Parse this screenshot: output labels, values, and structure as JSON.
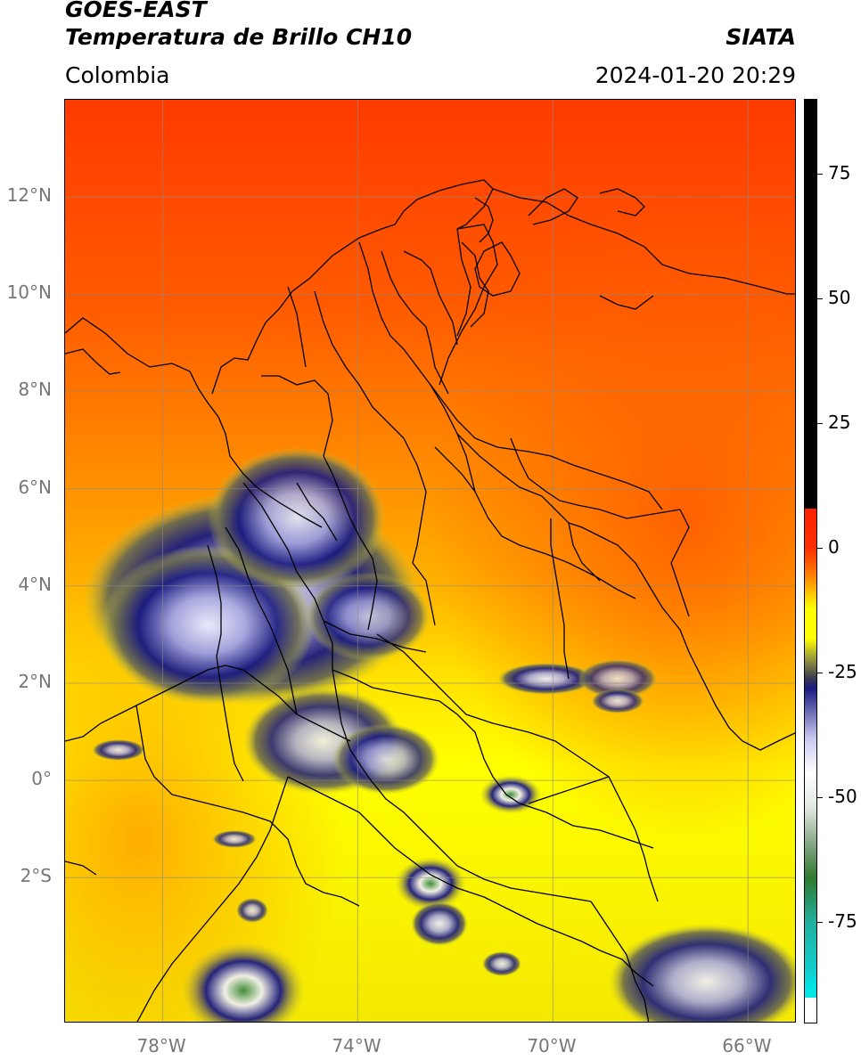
{
  "header": {
    "title": "GOES-EAST",
    "subtitle": "Temperatura de Brillo CH10",
    "region": "Colombia",
    "organization": "SIATA",
    "datetime": "2024-01-20 20:29"
  },
  "map": {
    "lon_range": [
      -80,
      -65
    ],
    "lat_range": [
      -5,
      14
    ],
    "lat_ticks": [
      {
        "value": 12,
        "label": "12°N"
      },
      {
        "value": 10,
        "label": "10°N"
      },
      {
        "value": 8,
        "label": "8°N"
      },
      {
        "value": 6,
        "label": "6°N"
      },
      {
        "value": 4,
        "label": "4°N"
      },
      {
        "value": 2,
        "label": "2°N"
      },
      {
        "value": 0,
        "label": "0°"
      },
      {
        "value": -2,
        "label": "2°S"
      }
    ],
    "lon_ticks": [
      {
        "value": -78,
        "label": "78°W"
      },
      {
        "value": -74,
        "label": "74°W"
      },
      {
        "value": -70,
        "label": "70°W"
      },
      {
        "value": -66,
        "label": "66°W"
      }
    ],
    "grid": true
  },
  "colorbar": {
    "range": [
      -95,
      90
    ],
    "ticks": [
      {
        "value": 75,
        "label": "75"
      },
      {
        "value": 50,
        "label": "50"
      },
      {
        "value": 25,
        "label": "25"
      },
      {
        "value": 0,
        "label": "0"
      },
      {
        "value": -25,
        "label": "-25"
      },
      {
        "value": -50,
        "label": "-50"
      },
      {
        "value": -75,
        "label": "-75"
      }
    ],
    "colors": {
      "black": "#000000",
      "red": "#ff2000",
      "orange": "#ff7a00",
      "yellow": "#ffff00",
      "olive": "#9a9a3a",
      "navy": "#1a1a80",
      "lavender": "#c8c8f0",
      "white": "#ffffff",
      "green": "#2f7a2f",
      "teal": "#20b0a0",
      "cyan": "#00e6e6"
    }
  }
}
